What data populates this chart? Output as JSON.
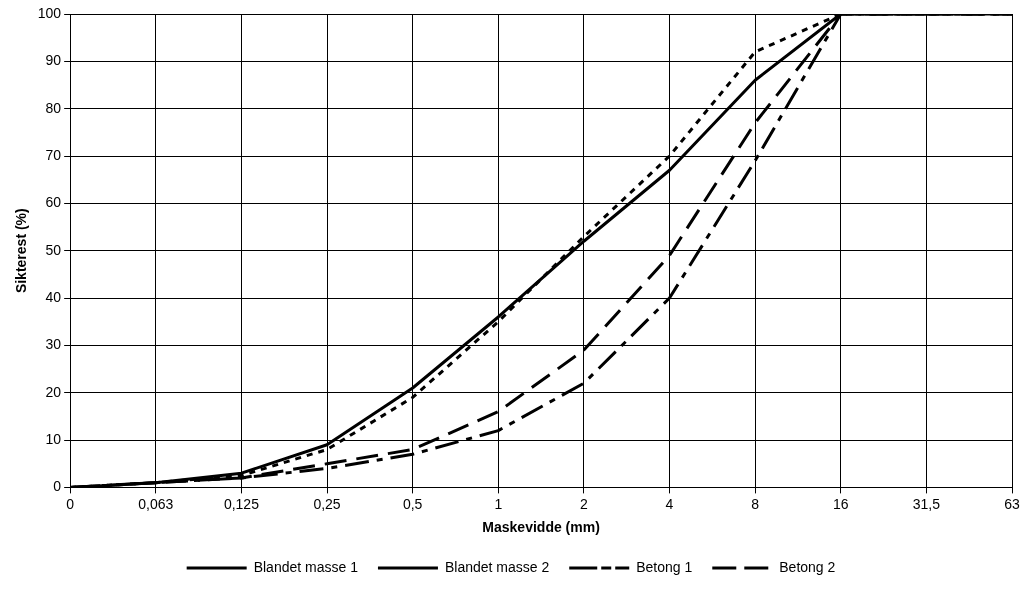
{
  "chart_data": {
    "type": "line",
    "xlabel": "Maskevidde (mm)",
    "ylabel": "Sikterest (%)",
    "categories": [
      "0",
      "0,063",
      "0,125",
      "0,25",
      "0,5",
      "1",
      "2",
      "4",
      "8",
      "16",
      "31,5",
      "63"
    ],
    "series": [
      {
        "name": "Blandet masse 1",
        "color": "#000000",
        "line_style": "solid",
        "values": [
          0,
          1,
          3,
          9,
          21,
          36,
          52,
          67,
          86,
          100,
          100,
          100
        ]
      },
      {
        "name": "Blandet masse 2",
        "color": "#000000",
        "line_style": "dotted",
        "values": [
          0,
          1,
          2.5,
          8,
          19,
          35,
          53,
          70,
          92,
          100,
          100,
          100
        ]
      },
      {
        "name": "Betong 1",
        "color": "#000000",
        "line_style": "dashdot",
        "values": [
          0,
          1,
          2,
          4,
          7,
          12,
          22,
          40,
          69,
          100,
          100,
          100
        ]
      },
      {
        "name": "Betong 2",
        "color": "#000000",
        "line_style": "dashed",
        "values": [
          0,
          1,
          2,
          5,
          8,
          16,
          29,
          49,
          77,
          100,
          100,
          100
        ]
      }
    ],
    "ylim": [
      0,
      100
    ],
    "yticks": [
      0,
      10,
      20,
      30,
      40,
      50,
      60,
      70,
      80,
      90,
      100
    ],
    "grid": true,
    "legend": "bottom",
    "marker": "none"
  }
}
